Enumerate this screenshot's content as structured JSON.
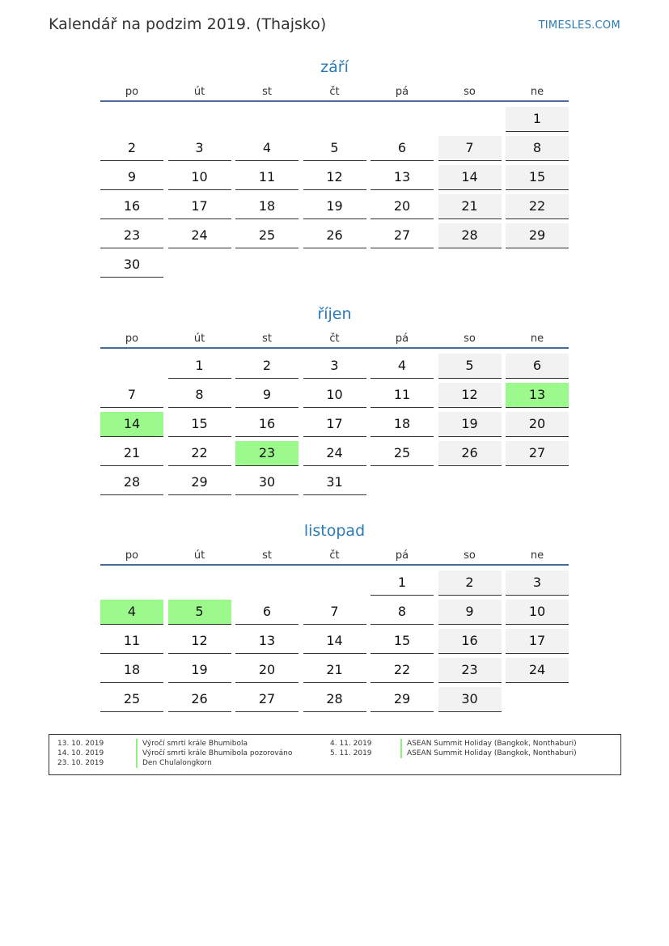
{
  "header": {
    "title": "Kalendář na podzim 2019. (Thajsko)",
    "brand": "TIMESLES.COM"
  },
  "weekdays": [
    "po",
    "út",
    "st",
    "čt",
    "pá",
    "so",
    "ne"
  ],
  "colors": {
    "accent": "#2a7ab8",
    "weekend": "#f2f2f2",
    "holiday": "#9cfa8c",
    "rule": "#4a6a9a"
  },
  "months": [
    {
      "name": "září",
      "offset": 6,
      "days": 30,
      "holidays": []
    },
    {
      "name": "říjen",
      "offset": 1,
      "days": 31,
      "holidays": [
        13,
        14,
        23
      ]
    },
    {
      "name": "listopad",
      "offset": 4,
      "days": 30,
      "holidays": [
        4,
        5
      ]
    }
  ],
  "legend": [
    {
      "date": "13. 10. 2019",
      "name": "Výročí smrti krále Bhumibola"
    },
    {
      "date": "14. 10. 2019",
      "name": "Výročí smrti krále Bhumibola pozorováno"
    },
    {
      "date": "23. 10. 2019",
      "name": "Den Chulalongkorn"
    },
    {
      "date": "4. 11. 2019",
      "name": "ASEAN Summit Holiday (Bangkok, Nonthaburi)"
    },
    {
      "date": "5. 11. 2019",
      "name": "ASEAN Summit Holiday (Bangkok, Nonthaburi)"
    }
  ]
}
